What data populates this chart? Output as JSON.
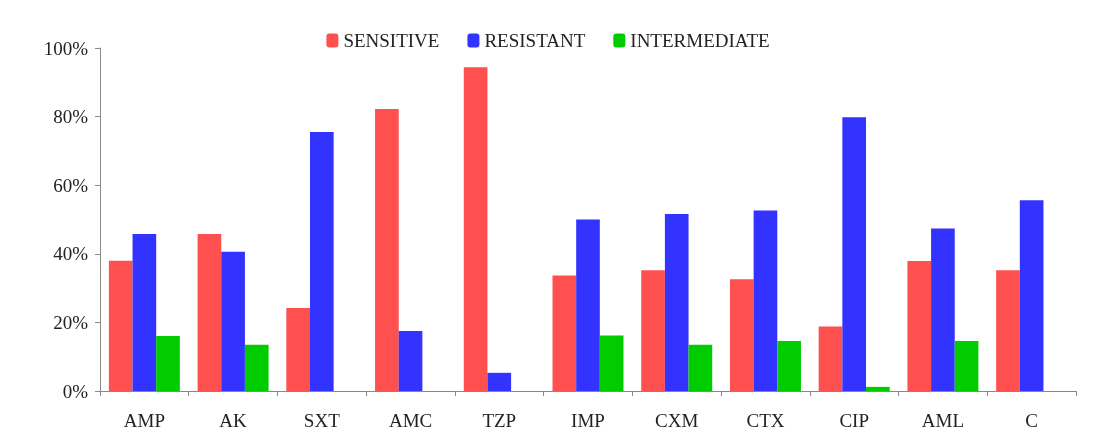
{
  "chart_data": {
    "type": "bar",
    "categories": [
      "AMP",
      "AK",
      "SXT",
      "AMC",
      "TZP",
      "IMP",
      "CXM",
      "CTX",
      "CIP",
      "AML",
      "C"
    ],
    "series": [
      {
        "name": "SENSITIVE",
        "color": "#ff5050",
        "values": [
          38,
          45.8,
          24.2,
          82.2,
          94.4,
          33.7,
          35.2,
          32.6,
          18.8,
          37.9,
          35.2
        ]
      },
      {
        "name": "RESISTANT",
        "color": "#3333ff",
        "values": [
          45.8,
          40.6,
          75.5,
          17.5,
          5.3,
          50,
          51.6,
          52.6,
          79.8,
          47.4,
          55.6
        ]
      },
      {
        "name": "INTERMEDIATE",
        "color": "#00cc00",
        "values": [
          16,
          13.5,
          0,
          0,
          0,
          16.2,
          13.5,
          14.6,
          1.2,
          14.6,
          0
        ]
      }
    ],
    "ylim": [
      0,
      100
    ],
    "yticks": [
      {
        "value": 0,
        "label": "0%"
      },
      {
        "value": 20,
        "label": "20%"
      },
      {
        "value": 40,
        "label": "40%"
      },
      {
        "value": 60,
        "label": "60%"
      },
      {
        "value": 80,
        "label": "80%"
      },
      {
        "value": 100,
        "label": "100%"
      }
    ],
    "grid": false,
    "legend": "top"
  }
}
